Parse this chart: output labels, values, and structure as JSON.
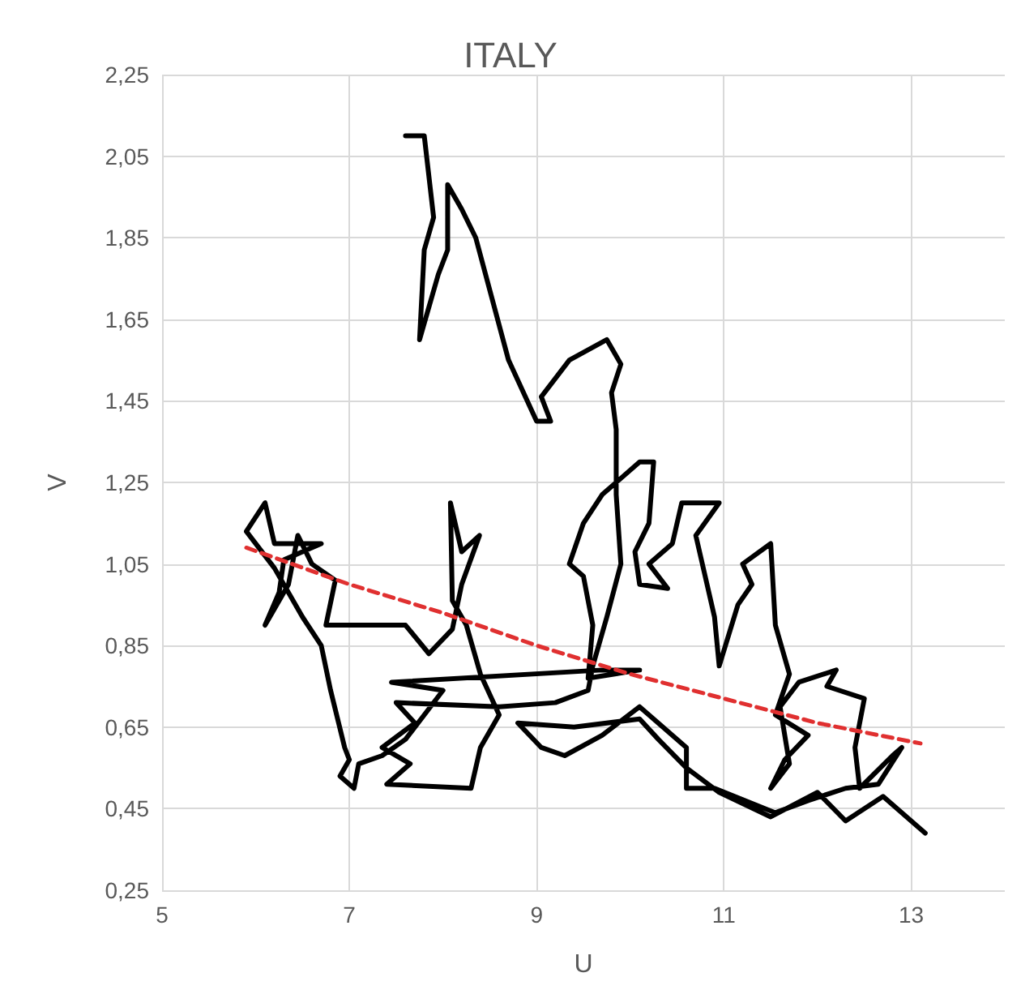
{
  "chart_data": {
    "type": "line",
    "title": "ITALY",
    "xlabel": "U",
    "ylabel": "V",
    "xlim": [
      5,
      14
    ],
    "xticks": [
      5,
      7,
      9,
      11,
      13
    ],
    "ylim": [
      0.25,
      2.25
    ],
    "yticks": [
      {
        "value": 0.25,
        "label": "0,25"
      },
      {
        "value": 0.45,
        "label": "0,45"
      },
      {
        "value": 0.65,
        "label": "0,65"
      },
      {
        "value": 0.85,
        "label": "0,85"
      },
      {
        "value": 1.05,
        "label": "1,05"
      },
      {
        "value": 1.25,
        "label": "1,25"
      },
      {
        "value": 1.45,
        "label": "1,45"
      },
      {
        "value": 1.65,
        "label": "1,65"
      },
      {
        "value": 1.85,
        "label": "1,85"
      },
      {
        "value": 2.05,
        "label": "2,05"
      },
      {
        "value": 2.25,
        "label": "2,25"
      }
    ],
    "grid": true,
    "marker": "none",
    "series": [
      {
        "color": "#000000",
        "line_style": "solid",
        "x": [
          7.6,
          7.8,
          7.9,
          7.8,
          7.75,
          7.95,
          8.05,
          8.05,
          8.2,
          8.35,
          8.7,
          9.0,
          9.15,
          9.05,
          9.35,
          9.75,
          9.9,
          9.8,
          9.85,
          9.85,
          9.9,
          9.75,
          9.6,
          9.55,
          9.2,
          8.6,
          7.5,
          7.7,
          7.35,
          7.65,
          7.4,
          8.3,
          8.4,
          8.6,
          8.4,
          8.25,
          8.1,
          8.08,
          8.2,
          8.39,
          8.2,
          8.1,
          7.85,
          7.6,
          6.75,
          6.85,
          6.6,
          6.45,
          6.35,
          6.1,
          6.25,
          6.3,
          6.7,
          6.2,
          6.1,
          5.9,
          6.2,
          6.5,
          6.7,
          6.8,
          6.95,
          7.0,
          6.9,
          7.05,
          7.1,
          7.35,
          7.6,
          7.8,
          8.0,
          7.45,
          9.7,
          10.1,
          9.55,
          9.6,
          9.5,
          9.35,
          9.5,
          9.7,
          10.1,
          10.25,
          10.2,
          10.05,
          10.1,
          10.4,
          10.2,
          10.45,
          10.55,
          10.95,
          10.7,
          10.8,
          10.9,
          10.95,
          11.15,
          11.3,
          11.2,
          11.5,
          11.55,
          11.7,
          11.55,
          11.9,
          11.65,
          11.5,
          11.7,
          11.6,
          11.8,
          12.2,
          12.1,
          12.5,
          12.4,
          12.45,
          12.8,
          12.9,
          12.65,
          12.3,
          11.9,
          11.55,
          10.9,
          10.6,
          10.6,
          10.1,
          9.7,
          9.3,
          9.05,
          8.8,
          9.4,
          10.1,
          10.3,
          10.6,
          10.95,
          11.5,
          12.0,
          12.3,
          12.7,
          13.15
        ],
        "values": [
          2.1,
          2.1,
          1.9,
          1.82,
          1.6,
          1.76,
          1.82,
          1.98,
          1.92,
          1.85,
          1.55,
          1.4,
          1.4,
          1.46,
          1.55,
          1.6,
          1.54,
          1.47,
          1.38,
          1.22,
          1.05,
          0.92,
          0.8,
          0.74,
          0.71,
          0.7,
          0.71,
          0.66,
          0.6,
          0.56,
          0.51,
          0.5,
          0.6,
          0.68,
          0.78,
          0.9,
          0.96,
          1.2,
          1.08,
          1.12,
          1.0,
          0.89,
          0.83,
          0.9,
          0.9,
          1.01,
          1.05,
          1.12,
          1.0,
          0.9,
          0.98,
          1.06,
          1.1,
          1.1,
          1.2,
          1.13,
          1.04,
          0.92,
          0.85,
          0.74,
          0.6,
          0.57,
          0.53,
          0.5,
          0.56,
          0.58,
          0.62,
          0.68,
          0.74,
          0.76,
          0.79,
          0.79,
          0.77,
          0.9,
          1.02,
          1.05,
          1.15,
          1.22,
          1.3,
          1.3,
          1.15,
          1.08,
          1.0,
          0.99,
          1.05,
          1.1,
          1.2,
          1.2,
          1.12,
          1.02,
          0.92,
          0.8,
          0.95,
          1.0,
          1.05,
          1.1,
          0.9,
          0.78,
          0.68,
          0.63,
          0.57,
          0.5,
          0.56,
          0.7,
          0.76,
          0.79,
          0.75,
          0.72,
          0.6,
          0.5,
          0.58,
          0.6,
          0.51,
          0.5,
          0.47,
          0.44,
          0.5,
          0.5,
          0.6,
          0.7,
          0.63,
          0.58,
          0.6,
          0.66,
          0.65,
          0.67,
          0.62,
          0.55,
          0.49,
          0.43,
          0.49,
          0.42,
          0.48,
          0.39
        ]
      },
      {
        "color": "#e03030",
        "line_style": "dashed",
        "x": [
          5.9,
          7,
          8,
          9,
          10,
          11,
          12,
          13.1
        ],
        "values": [
          1.09,
          1.0,
          0.93,
          0.85,
          0.78,
          0.72,
          0.66,
          0.61
        ]
      }
    ]
  }
}
